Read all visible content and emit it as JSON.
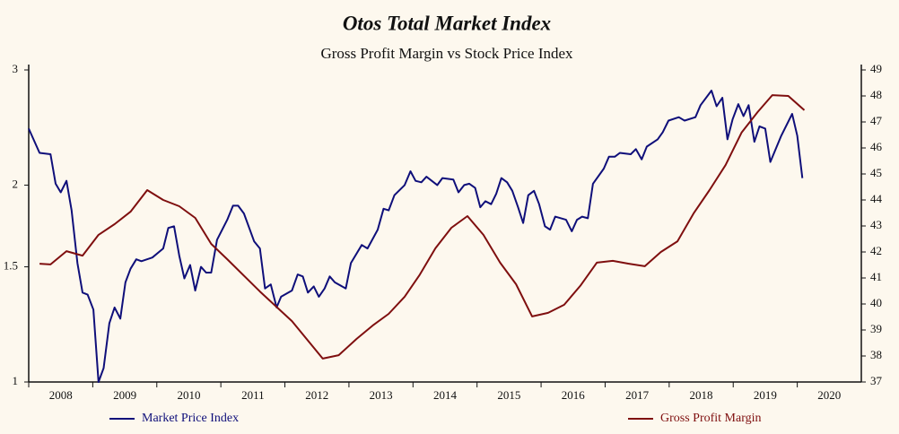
{
  "chart_data": {
    "type": "line",
    "title": "Otos Total Market Index",
    "subtitle": "Gross Profit Margin vs Stock Price Index",
    "xlim": [
      2008,
      2021
    ],
    "xticks": [
      2008,
      2009,
      2010,
      2011,
      2012,
      2013,
      2014,
      2015,
      2016,
      2017,
      2018,
      2019,
      2020
    ],
    "ylim": [
      1,
      3
    ],
    "yticks": [
      1,
      1.5,
      2,
      3
    ],
    "ylog": true,
    "y2lim": [
      37,
      49
    ],
    "y2ticks": [
      37,
      38,
      39,
      40,
      41,
      42,
      43,
      44,
      45,
      46,
      47,
      48,
      49
    ],
    "grid": false,
    "legend": "bottom",
    "series": [
      {
        "name": "Market Price Index",
        "color": "#0f0f7a",
        "axis": "y",
        "x": [
          2008.0,
          2008.17,
          2008.34,
          2008.42,
          2008.5,
          2008.59,
          2008.67,
          2008.76,
          2008.84,
          2008.92,
          2009.01,
          2009.09,
          2009.17,
          2009.26,
          2009.34,
          2009.43,
          2009.51,
          2009.59,
          2009.68,
          2009.76,
          2009.93,
          2010.1,
          2010.18,
          2010.27,
          2010.35,
          2010.43,
          2010.52,
          2010.6,
          2010.69,
          2010.77,
          2010.85,
          2010.94,
          2011.1,
          2011.19,
          2011.27,
          2011.36,
          2011.52,
          2011.61,
          2011.69,
          2011.78,
          2011.87,
          2011.94,
          2012.11,
          2012.2,
          2012.28,
          2012.36,
          2012.45,
          2012.53,
          2012.62,
          2012.7,
          2012.78,
          2012.95,
          2013.03,
          2013.2,
          2013.29,
          2013.45,
          2013.54,
          2013.62,
          2013.71,
          2013.87,
          2013.96,
          2014.04,
          2014.13,
          2014.21,
          2014.38,
          2014.46,
          2014.63,
          2014.71,
          2014.8,
          2014.88,
          2014.97,
          2015.05,
          2015.13,
          2015.22,
          2015.3,
          2015.38,
          2015.47,
          2015.55,
          2015.64,
          2015.72,
          2015.8,
          2015.89,
          2015.97,
          2016.06,
          2016.14,
          2016.22,
          2016.39,
          2016.48,
          2016.56,
          2016.64,
          2016.73,
          2016.81,
          2016.98,
          2017.06,
          2017.15,
          2017.23,
          2017.4,
          2017.48,
          2017.57,
          2017.65,
          2017.82,
          2017.9,
          2017.99,
          2018.15,
          2018.24,
          2018.41,
          2018.49,
          2018.66,
          2018.74,
          2018.83,
          2018.91,
          2018.99,
          2019.08,
          2019.16,
          2019.24,
          2019.33,
          2019.41,
          2019.5,
          2019.58,
          2019.75,
          2019.92,
          2020.0,
          2020.08
        ],
        "values": [
          2.44,
          2.24,
          2.23,
          2.01,
          1.95,
          2.03,
          1.83,
          1.52,
          1.37,
          1.36,
          1.29,
          1.0,
          1.05,
          1.23,
          1.3,
          1.25,
          1.42,
          1.49,
          1.54,
          1.53,
          1.55,
          1.6,
          1.72,
          1.73,
          1.56,
          1.44,
          1.51,
          1.38,
          1.5,
          1.47,
          1.47,
          1.65,
          1.77,
          1.86,
          1.86,
          1.81,
          1.64,
          1.6,
          1.39,
          1.41,
          1.3,
          1.35,
          1.38,
          1.46,
          1.45,
          1.37,
          1.4,
          1.35,
          1.39,
          1.45,
          1.42,
          1.39,
          1.52,
          1.62,
          1.6,
          1.71,
          1.84,
          1.83,
          1.93,
          2.0,
          2.1,
          2.03,
          2.02,
          2.06,
          2.0,
          2.05,
          2.04,
          1.95,
          2.0,
          2.01,
          1.98,
          1.85,
          1.89,
          1.87,
          1.94,
          2.05,
          2.02,
          1.96,
          1.85,
          1.75,
          1.93,
          1.96,
          1.87,
          1.73,
          1.71,
          1.79,
          1.77,
          1.7,
          1.77,
          1.79,
          1.78,
          2.01,
          2.12,
          2.21,
          2.21,
          2.24,
          2.23,
          2.27,
          2.19,
          2.29,
          2.35,
          2.41,
          2.51,
          2.54,
          2.51,
          2.54,
          2.65,
          2.79,
          2.64,
          2.72,
          2.35,
          2.52,
          2.66,
          2.55,
          2.65,
          2.33,
          2.46,
          2.44,
          2.17,
          2.38,
          2.57,
          2.38,
          2.05
        ]
      },
      {
        "name": "Gross Profit Margin",
        "color": "#7f0f0f",
        "axis": "y2",
        "x": [
          2008.17,
          2008.34,
          2008.59,
          2008.84,
          2009.09,
          2009.34,
          2009.59,
          2009.85,
          2010.1,
          2010.35,
          2010.6,
          2010.85,
          2011.1,
          2011.61,
          2012.11,
          2012.59,
          2012.84,
          2013.12,
          2013.37,
          2013.62,
          2013.87,
          2014.1,
          2014.35,
          2014.6,
          2014.85,
          2015.1,
          2015.36,
          2015.61,
          2015.86,
          2016.11,
          2016.36,
          2016.62,
          2016.87,
          2017.12,
          2017.37,
          2017.62,
          2017.87,
          2018.13,
          2018.38,
          2018.63,
          2018.88,
          2019.13,
          2019.38,
          2019.61,
          2019.86,
          2020.11
        ],
        "values": [
          41.55,
          41.52,
          42.03,
          41.86,
          42.66,
          43.07,
          43.55,
          44.38,
          44.0,
          43.76,
          43.31,
          42.31,
          41.72,
          40.48,
          39.34,
          37.9,
          38.03,
          38.66,
          39.17,
          39.62,
          40.28,
          41.1,
          42.14,
          42.93,
          43.38,
          42.66,
          41.59,
          40.76,
          39.52,
          39.66,
          39.97,
          40.72,
          41.59,
          41.66,
          41.55,
          41.45,
          42.0,
          42.41,
          43.48,
          44.38,
          45.34,
          46.59,
          47.38,
          48.03,
          48.0,
          47.45
        ]
      }
    ]
  }
}
